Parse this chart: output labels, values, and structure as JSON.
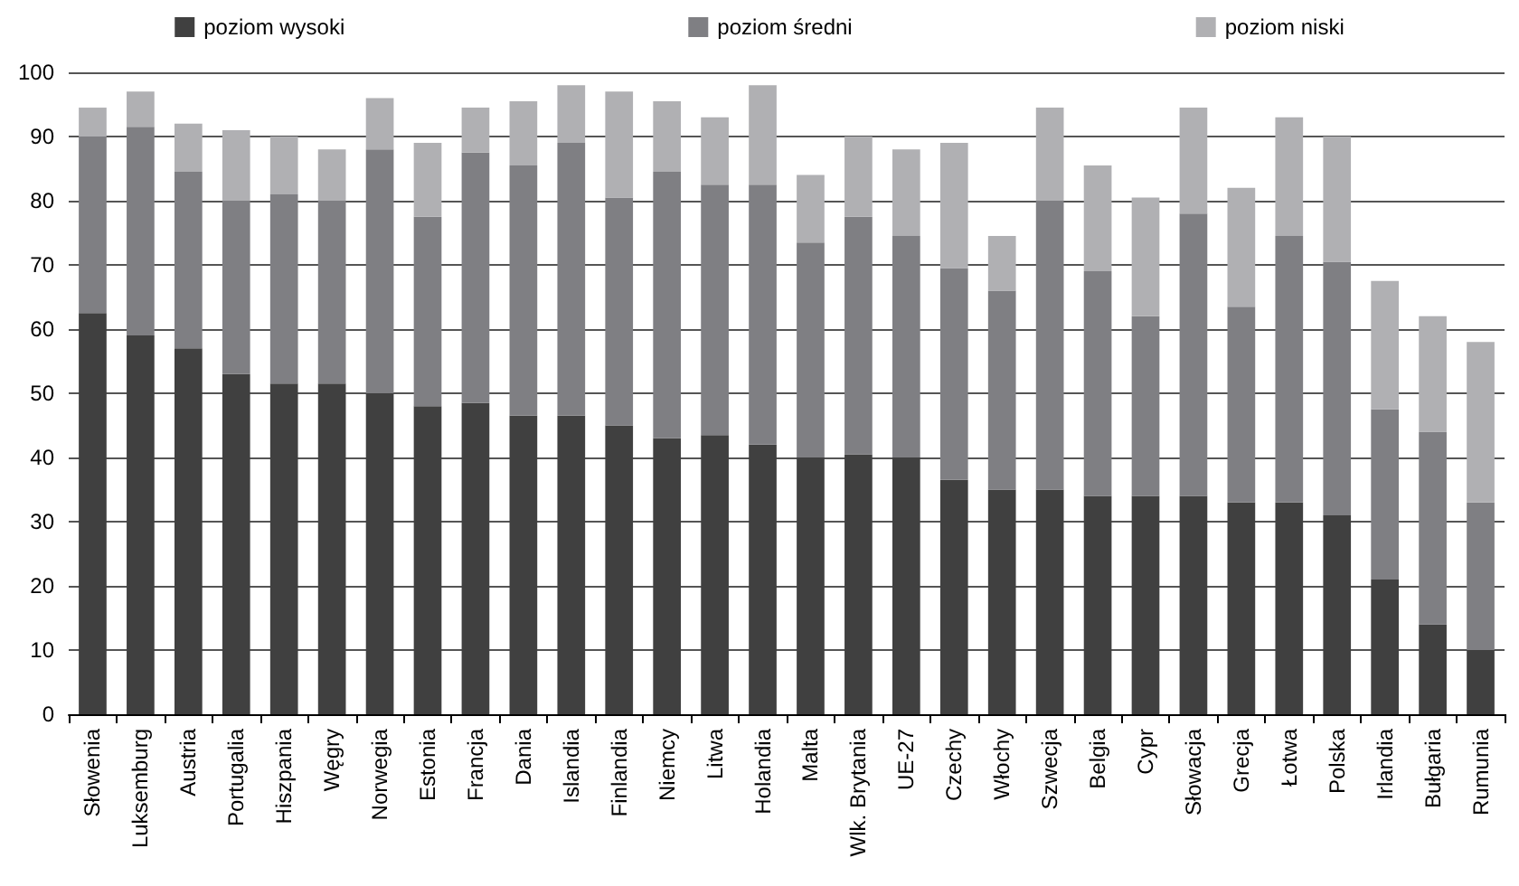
{
  "chart_data": {
    "type": "bar",
    "stacked": true,
    "categories": [
      "Słowenia",
      "Luksemburg",
      "Austria",
      "Portugalia",
      "Hiszpania",
      "Węgry",
      "Norwegia",
      "Estonia",
      "Francja",
      "Dania",
      "Islandia",
      "Finlandia",
      "Niemcy",
      "Litwa",
      "Holandia",
      "Malta",
      "Wlk. Brytania",
      "UE-27",
      "Czechy",
      "Włochy",
      "Szwecja",
      "Belgia",
      "Cypr",
      "Słowacja",
      "Grecja",
      "Łotwa",
      "Polska",
      "Irlandia",
      "Bułgaria",
      "Rumunia"
    ],
    "series": [
      {
        "name": "poziom wysoki",
        "color": "#404040",
        "values": [
          62.5,
          59,
          57,
          53,
          51.5,
          51.5,
          50,
          48,
          48.5,
          46.5,
          46.5,
          45,
          43,
          43.5,
          42,
          40,
          40.5,
          40,
          36.5,
          35,
          35,
          34,
          34,
          34,
          33,
          33,
          31,
          21,
          14,
          10
        ]
      },
      {
        "name": "poziom średni",
        "color": "#7f7f83",
        "values": [
          27.5,
          32.5,
          27.5,
          27,
          29.5,
          28.5,
          38,
          29.5,
          39,
          39,
          42.5,
          35.5,
          41.5,
          39,
          40.5,
          33.5,
          37,
          34.5,
          33,
          31,
          45,
          35,
          28,
          44,
          30.5,
          41.5,
          39.5,
          26.5,
          30,
          23
        ]
      },
      {
        "name": "poziom niski",
        "color": "#b0b0b3",
        "values": [
          4.5,
          5.5,
          7.5,
          11,
          9,
          8,
          8,
          11.5,
          7,
          10,
          9,
          16.5,
          11,
          10.5,
          15.5,
          10.5,
          12.5,
          13.5,
          19.5,
          8.5,
          14.5,
          16.5,
          18.5,
          16.5,
          18.5,
          18.5,
          19.5,
          20,
          18,
          25
        ]
      }
    ],
    "ylim": [
      0,
      100
    ],
    "yticks": [
      0,
      10,
      20,
      30,
      40,
      50,
      60,
      70,
      80,
      90,
      100
    ],
    "grid": "y",
    "legend": "top"
  }
}
